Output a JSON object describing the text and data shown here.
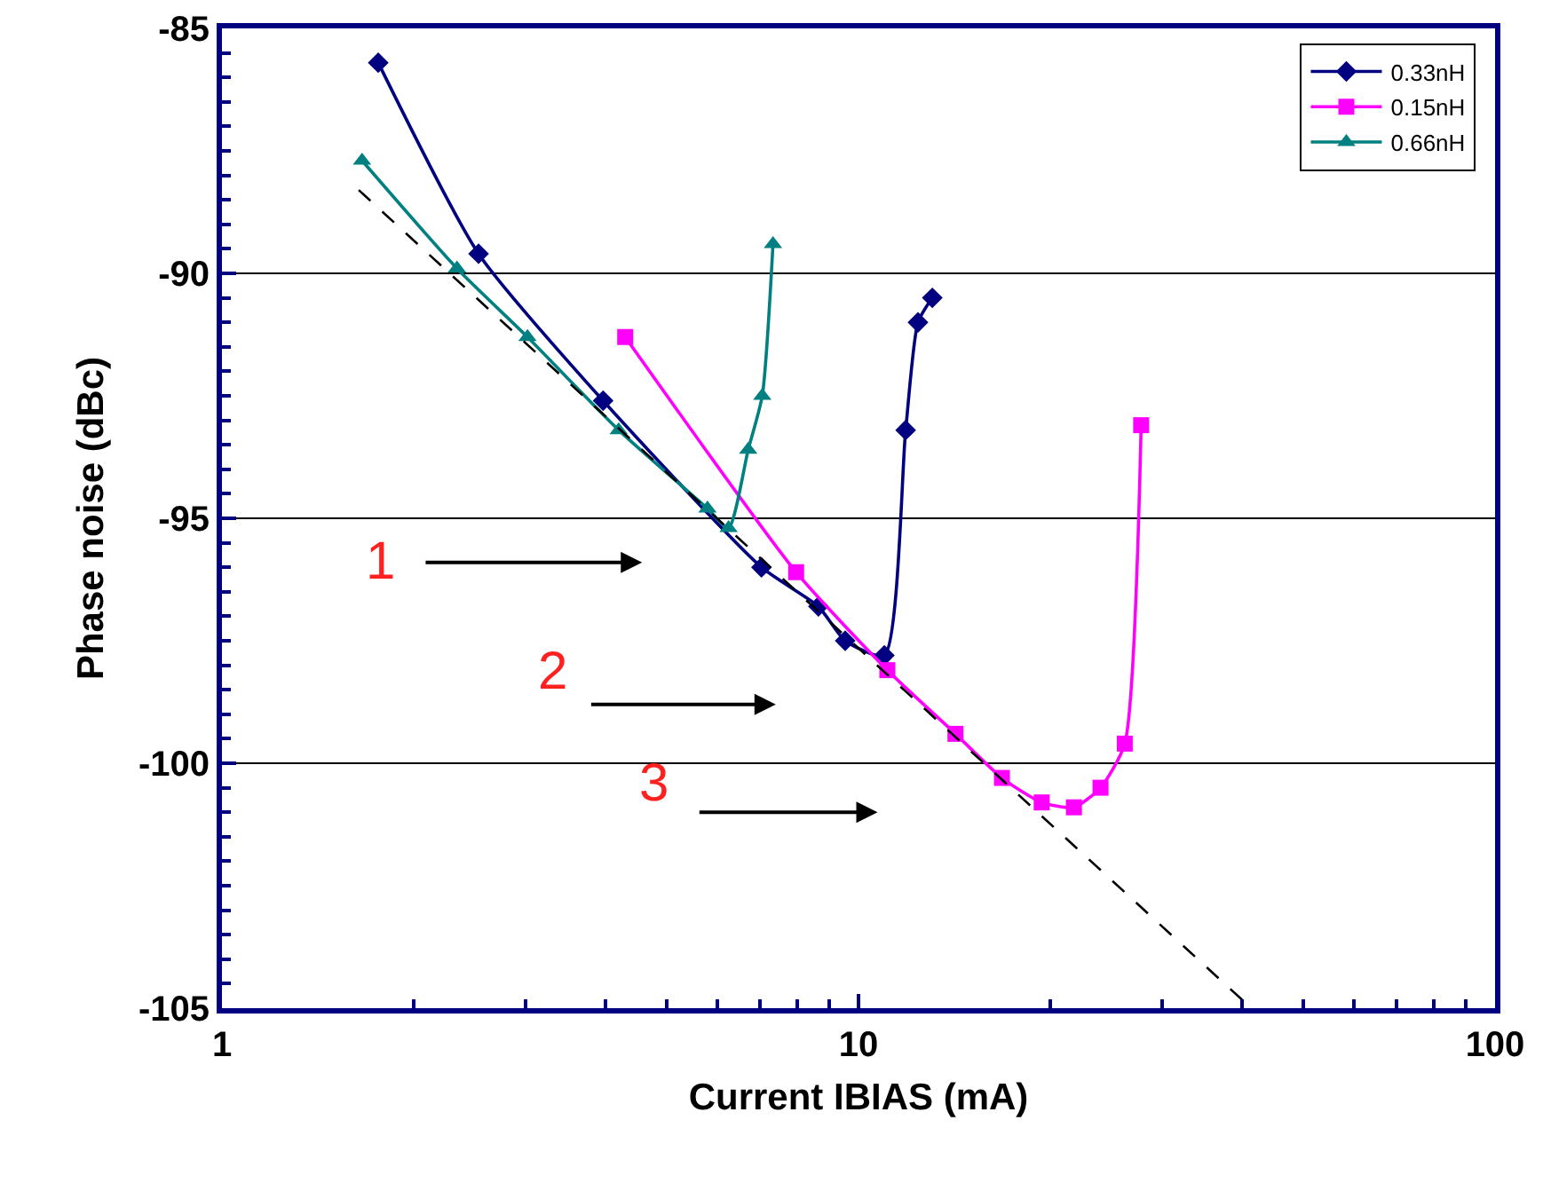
{
  "chart_data": {
    "type": "line",
    "xlabel": "Current IBIAS (mA)",
    "ylabel": "Phase noise (dBc)",
    "log": "x",
    "xlim": [
      1,
      100
    ],
    "xticks": [
      1,
      10,
      100
    ],
    "ylim": [
      -105,
      -85
    ],
    "yticks": [
      -105,
      -100,
      -95,
      -90,
      -85
    ],
    "grid": "y",
    "legend": "top right",
    "series": [
      {
        "name": "0.33nH",
        "color": "#000080",
        "marker": "diamond",
        "x": [
          1.76,
          2.53,
          3.97,
          7.04,
          8.65,
          9.53,
          10.98,
          11.86,
          12.4,
          13.06
        ],
        "values": [
          -85.7,
          -89.6,
          -92.6,
          -96.0,
          -96.8,
          -97.5,
          -97.8,
          -93.2,
          -91.0,
          -90.5
        ]
      },
      {
        "name": "0.15nH",
        "color": "#ff00ff",
        "marker": "square",
        "x": [
          4.3,
          7.98,
          11.1,
          14.2,
          16.8,
          19.4,
          21.8,
          24.0,
          26.2,
          27.8
        ],
        "values": [
          -91.3,
          -96.1,
          -98.1,
          -99.4,
          -100.3,
          -100.8,
          -100.9,
          -100.5,
          -99.6,
          -93.1
        ]
      },
      {
        "name": "0.66nH",
        "color": "#008080",
        "marker": "triangle",
        "x": [
          1.66,
          2.34,
          3.02,
          4.2,
          5.79,
          6.25,
          6.71,
          7.06,
          7.34
        ],
        "values": [
          -87.7,
          -89.9,
          -91.3,
          -93.2,
          -94.8,
          -95.2,
          -93.6,
          -92.5,
          -89.4
        ]
      },
      {
        "color": "#000000",
        "marker": "none",
        "line_style": "dashed",
        "x": [
          1.64,
          41.4
        ],
        "values": [
          -88.3,
          -105
        ]
      }
    ],
    "annotations": [
      "1",
      "2",
      "3"
    ]
  }
}
